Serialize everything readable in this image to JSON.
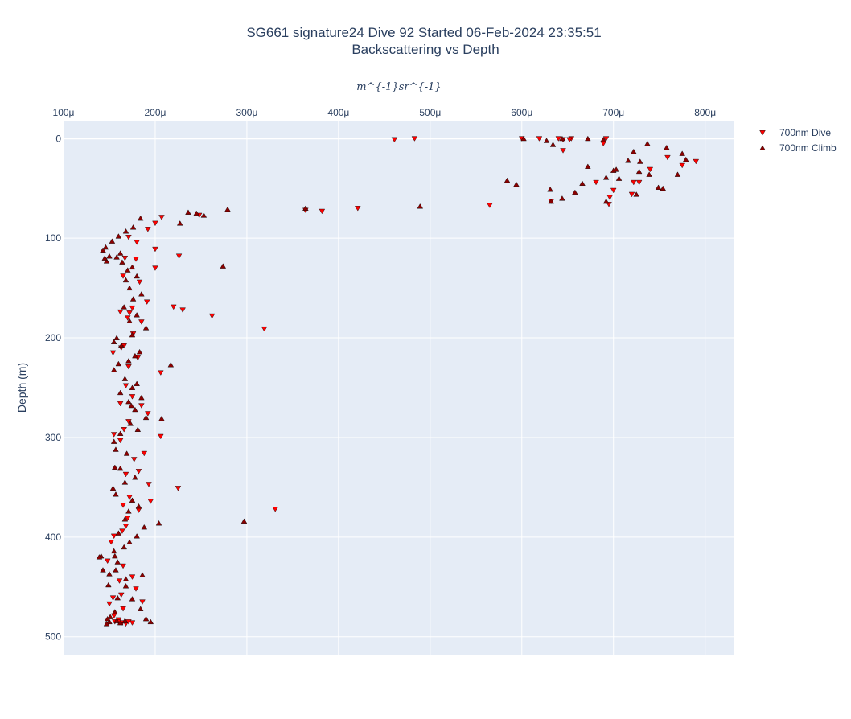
{
  "chart_data": {
    "type": "scatter",
    "title": "SG661 signature24 Dive 92 Started 06-Feb-2024 23:35:51",
    "subtitle": "Backscattering vs Depth",
    "xlabel": "m^{-1}sr^{-1}",
    "ylabel": "Depth (m)",
    "x_axis_position": "top",
    "y_reversed": true,
    "xlim": [
      0.0001,
      0.000831
    ],
    "ylim": [
      518,
      -18
    ],
    "x_ticks": [
      0.0001,
      0.0002,
      0.0003,
      0.0004,
      0.0005,
      0.0006,
      0.0007,
      0.0008
    ],
    "x_tick_labels": [
      "100μ",
      "200μ",
      "300μ",
      "400μ",
      "500μ",
      "600μ",
      "700μ",
      "800μ"
    ],
    "y_ticks": [
      0,
      100,
      200,
      300,
      400,
      500
    ],
    "y_tick_labels": [
      "0",
      "100",
      "200",
      "300",
      "400",
      "500"
    ],
    "grid": true,
    "legend_position": "top-right",
    "series": [
      {
        "name": "700nm Dive",
        "marker": "triangle-down",
        "color": "#ff0000",
        "x": [
          0.000461,
          0.000483,
          0.0006,
          0.000619,
          0.00064,
          0.000645,
          0.000654,
          0.000689,
          0.000692,
          0.000652,
          0.000645,
          0.00079,
          0.000775,
          0.000759,
          0.00074,
          0.000728,
          0.0007,
          0.000681,
          0.000696,
          0.000722,
          0.00072,
          0.000632,
          0.000695,
          0.000565,
          0.000421,
          0.000382,
          0.000364,
          0.000248,
          0.000207,
          0.0002,
          0.000192,
          0.00018,
          0.0002,
          0.000226,
          0.0002,
          0.000171,
          0.000167,
          0.000179,
          0.000165,
          0.000183,
          0.000191,
          0.000175,
          0.000162,
          0.000172,
          0.00017,
          0.00022,
          0.00023,
          0.000262,
          0.000319,
          0.000185,
          0.000176,
          0.000166,
          0.000154,
          0.000163,
          0.000181,
          0.000171,
          0.000206,
          0.000168,
          0.000175,
          0.000162,
          0.000185,
          0.000192,
          0.000171,
          0.000206,
          0.000166,
          0.000155,
          0.000162,
          0.000188,
          0.000177,
          0.000168,
          0.000182,
          0.000193,
          0.000225,
          0.000172,
          0.000165,
          0.000195,
          0.000182,
          0.000331,
          0.00017,
          0.000168,
          0.000155,
          0.000164,
          0.000152,
          0.000148,
          0.000165,
          0.000175,
          0.000161,
          0.000179,
          0.000163,
          0.000186,
          0.000154,
          0.00015,
          0.000165,
          0.000155,
          0.00016,
          0.000168,
          0.000156,
          0.000175,
          0.000164,
          0.00016,
          0.000171
        ],
        "y": [
          1,
          0,
          0,
          0,
          0,
          12,
          0,
          5,
          0,
          1,
          1,
          23,
          27,
          19,
          31,
          44,
          52,
          44,
          59,
          44,
          56,
          63,
          66,
          67,
          70,
          73,
          72,
          77,
          79,
          85,
          91,
          104,
          111,
          118,
          130,
          99,
          120,
          121,
          138,
          144,
          164,
          170,
          174,
          175,
          180,
          169,
          172,
          178,
          191,
          184,
          196,
          208,
          215,
          210,
          220,
          229,
          235,
          248,
          259,
          266,
          268,
          276,
          284,
          299,
          292,
          297,
          303,
          316,
          322,
          337,
          334,
          347,
          351,
          360,
          368,
          364,
          373,
          372,
          381,
          389,
          399,
          394,
          405,
          424,
          429,
          440,
          444,
          452,
          458,
          465,
          461,
          467,
          472,
          479,
          483,
          487,
          485,
          486,
          486,
          485,
          485
        ]
      },
      {
        "name": "700nm Climb",
        "marker": "triangle-up",
        "color": "#8b0000",
        "x": [
          0.000602,
          0.000627,
          0.000634,
          0.000644,
          0.000672,
          0.000689,
          0.000722,
          0.000737,
          0.000758,
          0.000775,
          0.000779,
          0.00077,
          0.000754,
          0.000749,
          0.000728,
          0.000739,
          0.000729,
          0.000716,
          0.000703,
          0.000692,
          0.000672,
          0.000666,
          0.0007,
          0.000706,
          0.000725,
          0.000692,
          0.000658,
          0.000644,
          0.000632,
          0.000631,
          0.000594,
          0.000584,
          0.000489,
          0.000364,
          0.000279,
          0.000253,
          0.000245,
          0.000236,
          0.000227,
          0.000184,
          0.000176,
          0.000168,
          0.00016,
          0.000153,
          0.000146,
          0.000143,
          0.00015,
          0.000147,
          0.000145,
          0.000162,
          0.000158,
          0.000164,
          0.00017,
          0.000175,
          0.00018,
          0.000168,
          0.000172,
          0.000274,
          0.000185,
          0.000176,
          0.000166,
          0.00018,
          0.000172,
          0.00019,
          0.000175,
          0.000158,
          0.000155,
          0.000163,
          0.000183,
          0.000178,
          0.000171,
          0.00016,
          0.000155,
          0.000167,
          0.000217,
          0.00018,
          0.000175,
          0.000162,
          0.000185,
          0.000171,
          0.000174,
          0.000178,
          0.00019,
          0.000207,
          0.000173,
          0.000181,
          0.000162,
          0.000155,
          0.000157,
          0.000169,
          0.000156,
          0.000162,
          0.000178,
          0.000167,
          0.000154,
          0.000157,
          0.000175,
          0.000182,
          0.000171,
          0.000167,
          0.000204,
          0.000188,
          0.00016,
          0.00018,
          0.000172,
          0.000166,
          0.000155,
          0.000156,
          0.000159,
          0.000186,
          0.000297,
          0.000157,
          0.000168,
          0.000141,
          0.000139,
          0.000143,
          0.000168,
          0.00015,
          0.000159,
          0.000175,
          0.000149,
          0.000156,
          0.000184,
          0.00019,
          0.000195,
          0.00015,
          0.000151,
          0.000148,
          0.000147,
          0.000158,
          0.000162,
          0.000167
        ],
        "y": [
          0,
          2,
          6,
          0,
          0,
          1,
          13,
          5,
          9,
          15,
          21,
          36,
          50,
          49,
          33,
          36,
          23,
          22,
          31,
          39,
          28,
          45,
          32,
          40,
          56,
          63,
          54,
          60,
          63,
          51,
          46,
          42,
          68,
          70,
          71,
          77,
          75,
          74,
          85,
          80,
          89,
          93,
          98,
          103,
          109,
          112,
          118,
          123,
          120,
          115,
          119,
          124,
          132,
          129,
          138,
          142,
          150,
          128,
          156,
          161,
          169,
          177,
          183,
          190,
          197,
          200,
          204,
          208,
          214,
          218,
          223,
          226,
          232,
          241,
          227,
          246,
          250,
          255,
          260,
          264,
          268,
          272,
          280,
          281,
          286,
          292,
          296,
          304,
          312,
          316,
          330,
          331,
          340,
          345,
          351,
          357,
          363,
          369,
          374,
          382,
          386,
          390,
          396,
          399,
          405,
          410,
          414,
          419,
          425,
          438,
          384,
          433,
          442,
          419,
          420,
          433,
          449,
          437,
          461,
          462,
          448,
          475,
          472,
          482,
          485,
          485,
          480,
          482,
          487,
          484,
          486,
          484
        ]
      }
    ]
  }
}
